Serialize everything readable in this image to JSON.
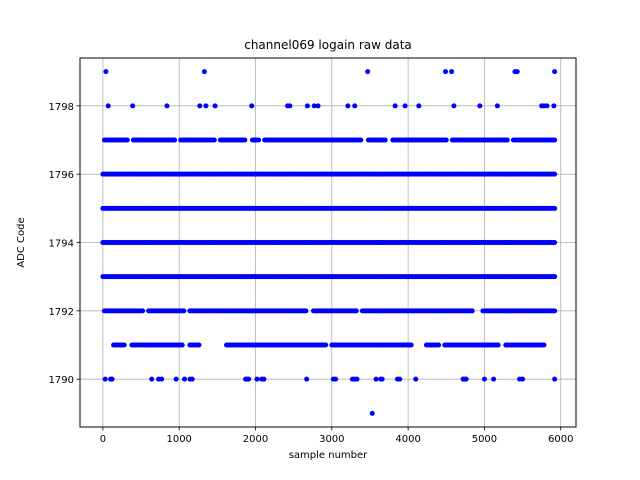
{
  "chart_data": {
    "type": "scatter",
    "title": "channel069 logain raw data",
    "xlabel": "sample number",
    "ylabel": "ADC Code",
    "xlim": [
      -300,
      6200
    ],
    "ylim": [
      1788.6,
      1799.4
    ],
    "xticks": [
      0,
      1000,
      2000,
      3000,
      4000,
      5000,
      6000
    ],
    "xtick_labels": [
      "0",
      "1000",
      "2000",
      "3000",
      "4000",
      "5000",
      "6000"
    ],
    "yticks": [
      1790,
      1792,
      1794,
      1796,
      1798
    ],
    "ytick_labels": [
      "1790",
      "1792",
      "1794",
      "1796",
      "1798"
    ],
    "grid": true,
    "marker_color": "#0000ff",
    "x_extent": [
      0,
      5920
    ],
    "series": [
      {
        "values_dense": [
          1793,
          1794,
          1795,
          1796
        ],
        "rows": [
          {
            "y": 1799,
            "x": [
              40,
              1330,
              3470,
              4490,
              4570,
              5400,
              5430,
              5920
            ]
          },
          {
            "y": 1798,
            "x": [
              70,
              390,
              840,
              1270,
              1350,
              1470,
              1950,
              2420,
              2450,
              2680,
              2770,
              2820,
              3210,
              3300,
              3830,
              3960,
              4140,
              4600,
              4940,
              5170,
              5750,
              5780,
              5820,
              5910
            ]
          },
          {
            "y": 1797,
            "x_ranges": [
              [
                20,
                5920
              ]
            ],
            "gaps": [
              [
                330,
                380
              ],
              [
                950,
                1000
              ],
              [
                1480,
                1530
              ],
              [
                1880,
                1940
              ],
              [
                2060,
                2110
              ],
              [
                3400,
                3460
              ],
              [
                3720,
                3790
              ],
              [
                4520,
                4570
              ],
              [
                5320,
                5360
              ]
            ]
          },
          {
            "y": 1796,
            "x_ranges": [
              [
                0,
                5920
              ]
            ]
          },
          {
            "y": 1795,
            "x_ranges": [
              [
                0,
                5920
              ]
            ]
          },
          {
            "y": 1794,
            "x_ranges": [
              [
                0,
                5920
              ]
            ]
          },
          {
            "y": 1793,
            "x_ranges": [
              [
                0,
                5920
              ]
            ]
          },
          {
            "y": 1792,
            "x_ranges": [
              [
                20,
                5920
              ]
            ],
            "gaps": [
              [
                540,
                590
              ],
              [
                1080,
                1130
              ],
              [
                2680,
                2740
              ],
              [
                3330,
                3380
              ],
              [
                4850,
                4960
              ]
            ]
          },
          {
            "y": 1791,
            "x_ranges": [
              [
                40,
                5920
              ]
            ],
            "gaps": [
              [
                40,
                130
              ],
              [
                300,
                370
              ],
              [
                1060,
                1120
              ],
              [
                1280,
                1600
              ],
              [
                2930,
                2990
              ],
              [
                4050,
                4220
              ],
              [
                4420,
                4470
              ],
              [
                5200,
                5260
              ],
              [
                5800,
                5920
              ]
            ]
          },
          {
            "y": 1790,
            "x": [
              30,
              100,
              120,
              640,
              730,
              770,
              960,
              1070,
              1140,
              1170,
              1870,
              1890,
              1910,
              2020,
              2080,
              2110,
              2670,
              3020,
              3050,
              3270,
              3300,
              3330,
              3580,
              3640,
              3660,
              3860,
              3890,
              4100,
              4720,
              4740,
              4760,
              5000,
              5120,
              5460,
              5500,
              5920
            ]
          },
          {
            "y": 1789,
            "x": [
              3530
            ]
          }
        ]
      }
    ]
  }
}
